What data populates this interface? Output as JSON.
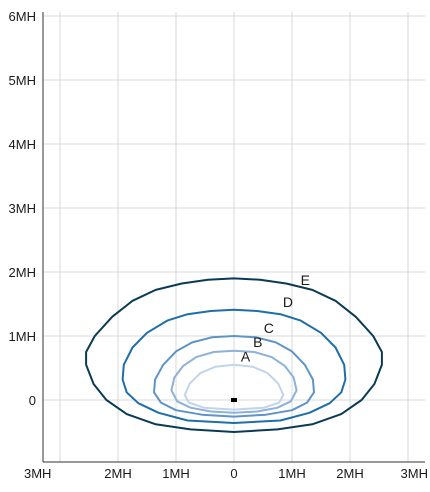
{
  "chart_data": {
    "type": "line",
    "title": "",
    "xlabel": "",
    "ylabel": "",
    "xlim": [
      -3,
      3
    ],
    "ylim": [
      -1,
      6
    ],
    "x_ticks": [
      {
        "value": -3,
        "label": "3MH"
      },
      {
        "value": -2,
        "label": "2MH"
      },
      {
        "value": -1,
        "label": "1MH"
      },
      {
        "value": 0,
        "label": "0"
      },
      {
        "value": 1,
        "label": "1MH"
      },
      {
        "value": 2,
        "label": "2MH"
      },
      {
        "value": 3,
        "label": "3MH"
      }
    ],
    "y_ticks": [
      {
        "value": 0,
        "label": "0"
      },
      {
        "value": 1,
        "label": "1MH"
      },
      {
        "value": 2,
        "label": "2MH"
      },
      {
        "value": 3,
        "label": "3MH"
      },
      {
        "value": 4,
        "label": "4MH"
      },
      {
        "value": 5,
        "label": "5MH"
      },
      {
        "value": 6,
        "label": "6MH"
      }
    ],
    "grid": true,
    "legend": "none",
    "luminaire_marker": {
      "x": 0,
      "y": 0
    },
    "series": [
      {
        "name": "E",
        "color": "#0b3a55",
        "label_position": {
          "x": 1.23,
          "y": 1.8
        },
        "points": [
          [
            0,
            1.9
          ],
          [
            0.45,
            1.88
          ],
          [
            0.9,
            1.82
          ],
          [
            1.35,
            1.72
          ],
          [
            1.75,
            1.55
          ],
          [
            2.1,
            1.3
          ],
          [
            2.4,
            1.0
          ],
          [
            2.55,
            0.75
          ],
          [
            2.55,
            0.55
          ],
          [
            2.42,
            0.25
          ],
          [
            2.2,
            0.0
          ],
          [
            1.85,
            -0.22
          ],
          [
            1.35,
            -0.38
          ],
          [
            0.75,
            -0.46
          ],
          [
            0,
            -0.5
          ],
          [
            -0.75,
            -0.46
          ],
          [
            -1.35,
            -0.38
          ],
          [
            -1.85,
            -0.22
          ],
          [
            -2.2,
            0.0
          ],
          [
            -2.42,
            0.25
          ],
          [
            -2.55,
            0.55
          ],
          [
            -2.55,
            0.75
          ],
          [
            -2.4,
            1.0
          ],
          [
            -2.1,
            1.3
          ],
          [
            -1.75,
            1.55
          ],
          [
            -1.35,
            1.72
          ],
          [
            -0.9,
            1.82
          ],
          [
            -0.45,
            1.88
          ],
          [
            0,
            1.9
          ]
        ]
      },
      {
        "name": "D",
        "color": "#1f6ea8",
        "label_position": {
          "x": 0.93,
          "y": 1.45
        },
        "points": [
          [
            0,
            1.41
          ],
          [
            0.4,
            1.39
          ],
          [
            0.8,
            1.34
          ],
          [
            1.15,
            1.24
          ],
          [
            1.5,
            1.05
          ],
          [
            1.75,
            0.82
          ],
          [
            1.9,
            0.55
          ],
          [
            1.92,
            0.32
          ],
          [
            1.85,
            0.12
          ],
          [
            1.65,
            -0.05
          ],
          [
            1.3,
            -0.2
          ],
          [
            0.8,
            -0.32
          ],
          [
            0,
            -0.36
          ],
          [
            -0.8,
            -0.32
          ],
          [
            -1.3,
            -0.2
          ],
          [
            -1.65,
            -0.05
          ],
          [
            -1.85,
            0.12
          ],
          [
            -1.92,
            0.32
          ],
          [
            -1.9,
            0.55
          ],
          [
            -1.75,
            0.82
          ],
          [
            -1.5,
            1.05
          ],
          [
            -1.15,
            1.24
          ],
          [
            -0.8,
            1.34
          ],
          [
            -0.4,
            1.39
          ],
          [
            0,
            1.41
          ]
        ]
      },
      {
        "name": "C",
        "color": "#5f94c7",
        "label_position": {
          "x": 0.6,
          "y": 1.05
        },
        "points": [
          [
            0,
            1.0
          ],
          [
            0.38,
            0.98
          ],
          [
            0.72,
            0.9
          ],
          [
            1.0,
            0.76
          ],
          [
            1.22,
            0.55
          ],
          [
            1.36,
            0.32
          ],
          [
            1.38,
            0.12
          ],
          [
            1.26,
            -0.04
          ],
          [
            1.0,
            -0.16
          ],
          [
            0.55,
            -0.23
          ],
          [
            0,
            -0.26
          ],
          [
            -0.55,
            -0.23
          ],
          [
            -1.0,
            -0.16
          ],
          [
            -1.26,
            -0.04
          ],
          [
            -1.38,
            0.12
          ],
          [
            -1.36,
            0.32
          ],
          [
            -1.22,
            0.55
          ],
          [
            -1.0,
            0.76
          ],
          [
            -0.72,
            0.9
          ],
          [
            -0.38,
            0.98
          ],
          [
            0,
            1.0
          ]
        ]
      },
      {
        "name": "B",
        "color": "#8eb1d9",
        "label_position": {
          "x": 0.41,
          "y": 0.83
        },
        "points": [
          [
            0,
            0.77
          ],
          [
            0.35,
            0.75
          ],
          [
            0.65,
            0.67
          ],
          [
            0.88,
            0.53
          ],
          [
            1.03,
            0.35
          ],
          [
            1.08,
            0.15
          ],
          [
            0.98,
            -0.02
          ],
          [
            0.75,
            -0.12
          ],
          [
            0.4,
            -0.18
          ],
          [
            0,
            -0.2
          ],
          [
            -0.4,
            -0.18
          ],
          [
            -0.75,
            -0.12
          ],
          [
            -0.98,
            -0.02
          ],
          [
            -1.08,
            0.15
          ],
          [
            -1.03,
            0.35
          ],
          [
            -0.88,
            0.53
          ],
          [
            -0.65,
            0.67
          ],
          [
            -0.35,
            0.75
          ],
          [
            0,
            0.77
          ]
        ]
      },
      {
        "name": "A",
        "color": "#c1d4ec",
        "label_position": {
          "x": 0.2,
          "y": 0.6
        },
        "points": [
          [
            0,
            0.55
          ],
          [
            0.32,
            0.52
          ],
          [
            0.58,
            0.42
          ],
          [
            0.76,
            0.26
          ],
          [
            0.85,
            0.08
          ],
          [
            0.78,
            -0.04
          ],
          [
            0.52,
            -0.12
          ],
          [
            0,
            -0.15
          ],
          [
            -0.52,
            -0.12
          ],
          [
            -0.78,
            -0.04
          ],
          [
            -0.85,
            0.08
          ],
          [
            -0.76,
            0.26
          ],
          [
            -0.58,
            0.42
          ],
          [
            -0.32,
            0.52
          ],
          [
            0,
            0.55
          ]
        ]
      }
    ]
  }
}
